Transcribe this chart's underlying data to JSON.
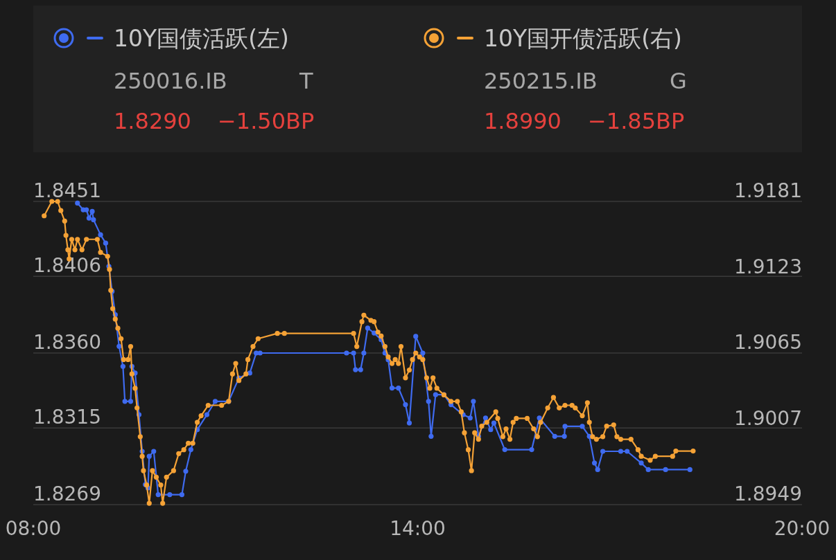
{
  "chart_data": {
    "type": "line",
    "xlim": [
      8,
      20
    ],
    "xticks": [
      {
        "value": 8,
        "label": "08:00"
      },
      {
        "value": 14,
        "label": "14:00"
      },
      {
        "value": 20,
        "label": "20:00"
      }
    ],
    "ylim": [
      1.8269,
      1.8451
    ],
    "yticks": [
      1.8269,
      1.8315,
      {
        "value": 1.836,
        "label": "1.8360"
      },
      1.8406,
      1.8451
    ],
    "y2lim": [
      1.8949,
      1.9181
    ],
    "y2ticks": [
      1.8949,
      1.9007,
      1.9065,
      1.9123,
      1.9181
    ],
    "grid": "y",
    "legend": "top",
    "marker": "circle",
    "line_style": "solid",
    "annotations": [
      "250016.IB",
      "T",
      "1.8290",
      "−1.50BP",
      "250215.IB",
      "G",
      "1.8990",
      "−1.85BP"
    ],
    "series": [
      {
        "name": "10Y国债活跃(左)",
        "color": "#3f6bf0",
        "x": [
          8.69,
          8.78,
          8.83,
          8.87,
          8.92,
          8.94,
          9.05,
          9.13,
          9.18,
          9.23,
          9.28,
          9.34,
          9.4,
          9.43,
          9.52,
          9.54,
          9.59,
          9.65,
          9.7,
          9.75,
          9.79,
          9.81,
          9.88,
          9.95,
          10.13,
          10.32,
          10.38,
          10.46,
          10.56,
          10.71,
          10.84,
          11.05,
          11.21,
          11.38,
          11.48,
          11.54,
          12.89,
          13.0,
          13.03,
          13.11,
          13.16,
          13.22,
          13.32,
          13.43,
          13.49,
          13.54,
          13.6,
          13.7,
          13.81,
          13.87,
          13.97,
          14.08,
          14.17,
          14.21,
          14.28,
          14.41,
          14.52,
          14.71,
          14.82,
          14.87,
          14.95,
          15.06,
          15.14,
          15.19,
          15.36,
          15.78,
          15.9,
          16.14,
          16.29,
          16.3,
          16.57,
          16.68,
          16.76,
          16.81,
          16.89,
          17.17,
          17.27,
          17.49,
          17.6,
          17.87,
          18.25
        ],
        "values": [
          1.845,
          1.8446,
          1.8446,
          1.8441,
          1.8445,
          1.844,
          1.8431,
          1.8426,
          1.8412,
          1.8397,
          1.8383,
          1.8364,
          1.8352,
          1.8331,
          1.8331,
          1.8352,
          1.8348,
          1.8323,
          1.8301,
          1.8281,
          1.8279,
          1.8298,
          1.8301,
          1.8275,
          1.8275,
          1.8275,
          1.8289,
          1.8302,
          1.8314,
          1.8323,
          1.8331,
          1.8331,
          1.8345,
          1.8348,
          1.836,
          1.836,
          1.836,
          1.836,
          1.835,
          1.835,
          1.836,
          1.8375,
          1.8372,
          1.8368,
          1.836,
          1.8356,
          1.8339,
          1.8339,
          1.8329,
          1.8318,
          1.837,
          1.836,
          1.8331,
          1.831,
          1.8335,
          1.8335,
          1.8329,
          1.8323,
          1.8321,
          1.8331,
          1.831,
          1.8321,
          1.8314,
          1.8318,
          1.8302,
          1.8302,
          1.8321,
          1.831,
          1.831,
          1.8316,
          1.8316,
          1.831,
          1.8294,
          1.829,
          1.8301,
          1.8301,
          1.8301,
          1.8294,
          1.829,
          1.829,
          1.829
        ]
      },
      {
        "name": "10Y国开债活跃(右)",
        "color": "#f5a236",
        "axis": "y2",
        "x": [
          8.17,
          8.29,
          8.38,
          8.43,
          8.49,
          8.51,
          8.54,
          8.56,
          8.6,
          8.65,
          8.69,
          8.76,
          8.83,
          9.0,
          9.05,
          9.16,
          9.19,
          9.21,
          9.24,
          9.28,
          9.32,
          9.37,
          9.41,
          9.48,
          9.52,
          9.54,
          9.59,
          9.62,
          9.67,
          9.7,
          9.72,
          9.77,
          9.81,
          9.86,
          9.92,
          9.99,
          10.02,
          10.08,
          10.19,
          10.27,
          10.35,
          10.42,
          10.49,
          10.56,
          10.62,
          10.73,
          10.94,
          11.05,
          11.11,
          11.16,
          11.21,
          11.32,
          11.35,
          11.43,
          11.51,
          11.81,
          11.92,
          13.0,
          13.05,
          13.13,
          13.16,
          13.27,
          13.32,
          13.38,
          13.43,
          13.49,
          13.54,
          13.6,
          13.65,
          13.7,
          13.74,
          13.81,
          13.87,
          13.92,
          13.97,
          14.03,
          14.08,
          14.14,
          14.19,
          14.24,
          14.3,
          14.41,
          14.52,
          14.62,
          14.68,
          14.73,
          14.79,
          14.84,
          14.89,
          14.95,
          15.0,
          15.08,
          15.22,
          15.25,
          15.33,
          15.38,
          15.44,
          15.49,
          15.54,
          15.71,
          15.81,
          15.87,
          15.92,
          16.03,
          16.12,
          16.21,
          16.3,
          16.41,
          16.46,
          16.57,
          16.65,
          16.68,
          16.73,
          16.79,
          16.89,
          16.95,
          17.06,
          17.11,
          17.17,
          17.33,
          17.44,
          17.49,
          17.63,
          17.71,
          17.98,
          18.03,
          18.3
        ],
        "values": [
          1.917,
          1.9181,
          1.9181,
          1.9174,
          1.9166,
          1.9155,
          1.9144,
          1.9137,
          1.9152,
          1.9144,
          1.9152,
          1.9144,
          1.9152,
          1.9152,
          1.9142,
          1.9139,
          1.9129,
          1.9113,
          1.9099,
          1.9091,
          1.9084,
          1.9076,
          1.906,
          1.906,
          1.907,
          1.9049,
          1.9038,
          1.9023,
          1.9001,
          1.8986,
          1.8975,
          1.8964,
          1.895,
          1.8975,
          1.897,
          1.8964,
          1.895,
          1.897,
          1.8975,
          1.8988,
          1.8991,
          1.8996,
          1.8996,
          1.9012,
          1.9017,
          1.9025,
          1.9025,
          1.9028,
          1.9049,
          1.9057,
          1.9044,
          1.9049,
          1.906,
          1.907,
          1.9076,
          1.908,
          1.908,
          1.908,
          1.907,
          1.9089,
          1.9094,
          1.909,
          1.9089,
          1.9081,
          1.9078,
          1.907,
          1.9062,
          1.9057,
          1.906,
          1.9057,
          1.907,
          1.9046,
          1.9052,
          1.906,
          1.9065,
          1.9062,
          1.906,
          1.9046,
          1.9038,
          1.9046,
          1.9038,
          1.9033,
          1.9028,
          1.9028,
          1.902,
          1.9004,
          1.8991,
          1.8975,
          1.9004,
          1.8999,
          1.9009,
          1.9012,
          1.902,
          1.9015,
          1.9001,
          1.9007,
          1.8999,
          1.9012,
          1.9015,
          1.9015,
          1.9007,
          1.9001,
          1.9012,
          1.9023,
          1.9031,
          1.9023,
          1.9025,
          1.9025,
          1.9023,
          1.9017,
          1.9027,
          1.9012,
          1.9001,
          1.8999,
          1.9001,
          1.9009,
          1.901,
          1.9001,
          1.8999,
          1.8999,
          1.8991,
          1.8986,
          1.8983,
          1.8986,
          1.8986,
          1.899,
          1.899
        ]
      }
    ]
  }
}
